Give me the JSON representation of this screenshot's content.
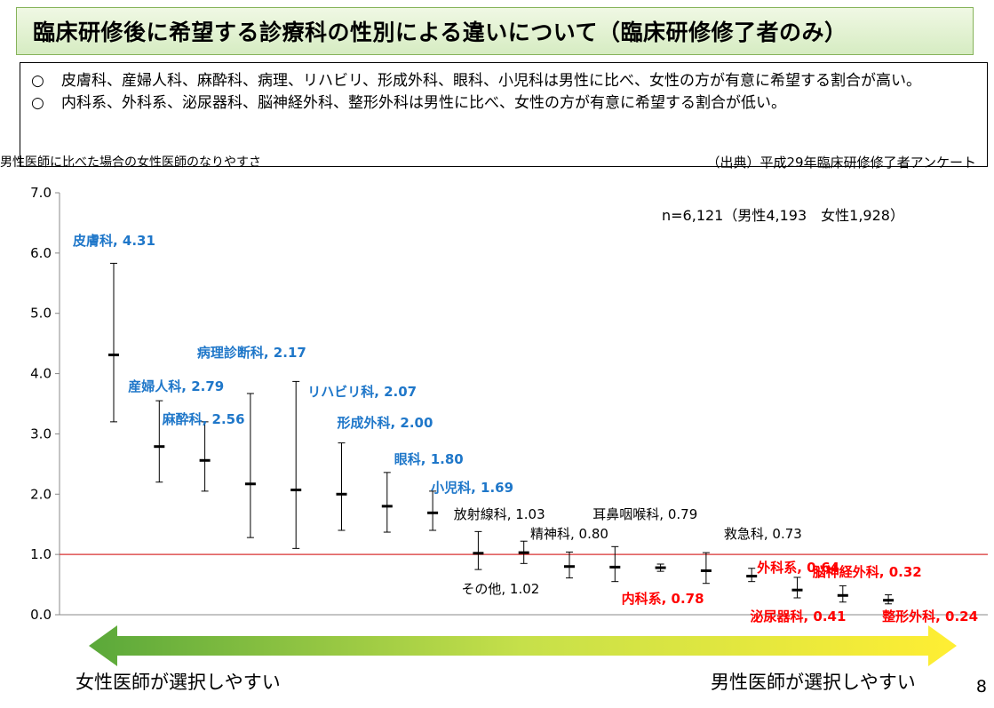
{
  "title": "臨床研修後に希望する診療科の性別による違いについて（臨床研修修了者のみ）",
  "summary": [
    {
      "mark": "○",
      "text": "皮膚科、産婦人科、麻酔科、病理、リハビリ、形成外科、眼科、小児科は男性に比べ、女性の方が有意に希望する割合が高い。"
    },
    {
      "mark": "○",
      "text": "内科系、外科系、泌尿器科、脳神経外科、整形外科は男性に比べ、女性の方が有意に希望する割合が低い。"
    }
  ],
  "subtitle": "男性医師に比べた場合の女性医師のなりやすさ",
  "source": "（出典）平成29年臨床研修修了者アンケート",
  "page_number": "8",
  "arrow_labels": {
    "female": "女性医師が選択しやすい",
    "male": "男性医師が選択しやすい"
  },
  "colors": {
    "blue": "#1f77c9",
    "red": "#ff0000",
    "black": "#000000",
    "refline": "#d93030"
  },
  "chart_data": {
    "type": "errorbar",
    "ylim": [
      0,
      7
    ],
    "yticks": [
      "0.0",
      "1.0",
      "2.0",
      "3.0",
      "4.0",
      "5.0",
      "6.0",
      "7.0"
    ],
    "reference_line": 1.0,
    "annotation": "n=6,121（男性4,193　女性1,928）",
    "points": [
      {
        "label": "皮膚科, 4.31",
        "value": 4.31,
        "low": 3.2,
        "high": 5.83,
        "color": "blue"
      },
      {
        "label": "産婦人科, 2.79",
        "value": 2.79,
        "low": 2.2,
        "high": 3.55,
        "color": "blue"
      },
      {
        "label": "麻酔科, 2.56",
        "value": 2.56,
        "low": 2.05,
        "high": 3.2,
        "color": "blue"
      },
      {
        "label": "病理診断科, 2.17",
        "value": 2.17,
        "low": 1.28,
        "high": 3.67,
        "color": "blue"
      },
      {
        "label": "リハビリ科, 2.07",
        "value": 2.07,
        "low": 1.1,
        "high": 3.87,
        "color": "blue"
      },
      {
        "label": "形成外科, 2.00",
        "value": 2.0,
        "low": 1.4,
        "high": 2.85,
        "color": "blue"
      },
      {
        "label": "眼科, 1.80",
        "value": 1.8,
        "low": 1.37,
        "high": 2.36,
        "color": "blue"
      },
      {
        "label": "小児科, 1.69",
        "value": 1.69,
        "low": 1.4,
        "high": 2.05,
        "color": "blue"
      },
      {
        "label": "その他, 1.02",
        "value": 1.02,
        "low": 0.75,
        "high": 1.38,
        "color": "black"
      },
      {
        "label": "放射線科, 1.03",
        "value": 1.03,
        "low": 0.85,
        "high": 1.22,
        "color": "black"
      },
      {
        "label": "精神科, 0.80",
        "value": 0.8,
        "low": 0.61,
        "high": 1.04,
        "color": "black"
      },
      {
        "label": "耳鼻咽喉科, 0.79",
        "value": 0.79,
        "low": 0.55,
        "high": 1.13,
        "color": "black"
      },
      {
        "label": "内科系, 0.78",
        "value": 0.78,
        "low": 0.72,
        "high": 0.84,
        "color": "red"
      },
      {
        "label": "救急科, 0.73",
        "value": 0.73,
        "low": 0.52,
        "high": 1.03,
        "color": "black"
      },
      {
        "label": "外科系, 0.64",
        "value": 0.64,
        "low": 0.55,
        "high": 0.77,
        "color": "red"
      },
      {
        "label": "泌尿器科, 0.41",
        "value": 0.41,
        "low": 0.28,
        "high": 0.62,
        "color": "red"
      },
      {
        "label": "脳神経外科, 0.32",
        "value": 0.32,
        "low": 0.21,
        "high": 0.48,
        "color": "red"
      },
      {
        "label": "整形外科, 0.24",
        "value": 0.24,
        "low": 0.18,
        "high": 0.33,
        "color": "red"
      }
    ]
  }
}
